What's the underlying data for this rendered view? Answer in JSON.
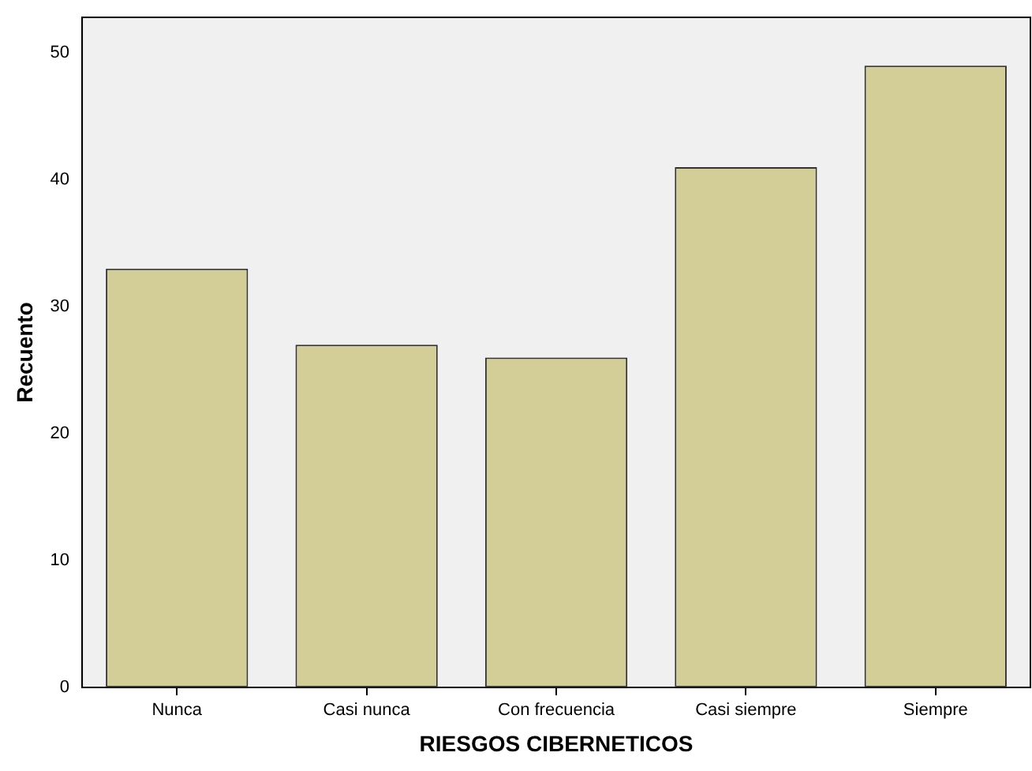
{
  "chart_data": {
    "type": "bar",
    "xlabel": "RIESGOS CIBERNETICOS",
    "ylabel": "Recuento",
    "categories": [
      "Nunca",
      "Casi nunca",
      "Con frecuencia",
      "Casi siempre",
      "Siempre"
    ],
    "values": [
      33,
      27,
      26,
      41,
      49
    ],
    "color": "#d3ce97",
    "ylim": [
      0,
      52.8
    ],
    "yticks": [
      0,
      10,
      20,
      30,
      40,
      50
    ],
    "grid": false,
    "legend": false
  }
}
